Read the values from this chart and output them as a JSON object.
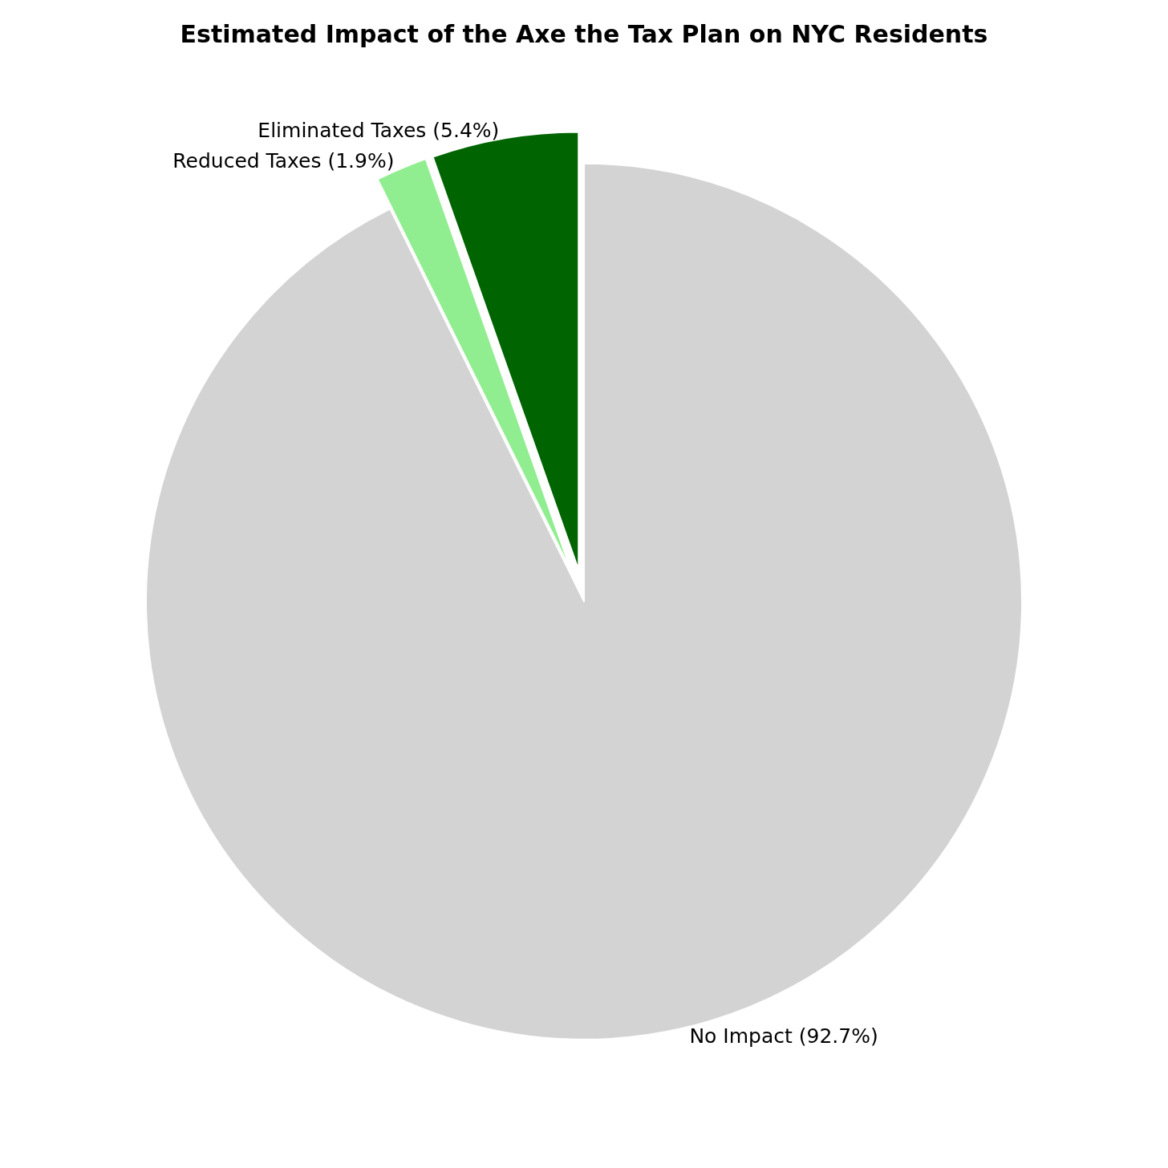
{
  "chart_data": {
    "type": "pie",
    "title": "Estimated Impact of the Axe the Tax Plan on NYC Residents",
    "categories": [
      "Eliminated Taxes (5.4%)",
      "Reduced Taxes (1.9%)",
      "No Impact (92.7%)"
    ],
    "values": [
      5.4,
      1.9,
      92.7
    ],
    "colors": [
      "#006400",
      "#90ee90",
      "#d3d3d3"
    ]
  }
}
